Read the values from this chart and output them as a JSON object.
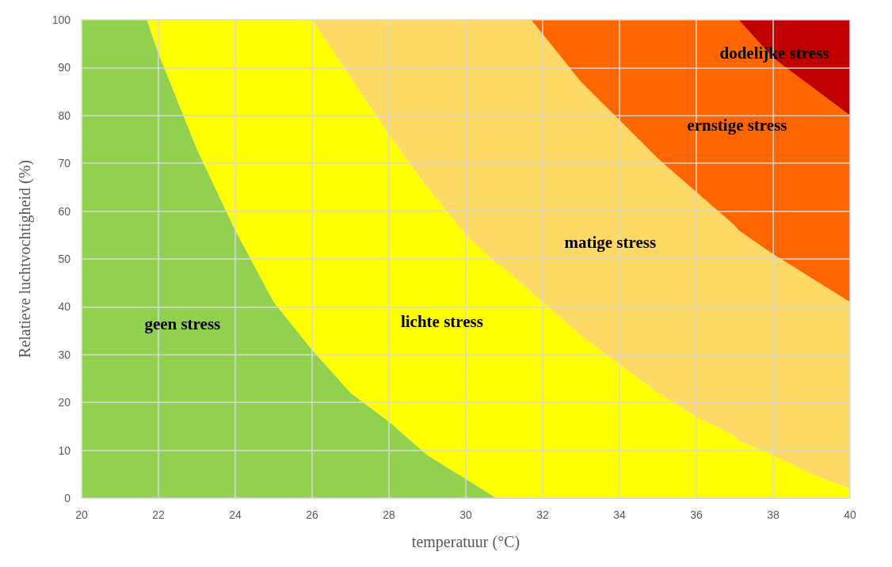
{
  "chart_data": {
    "type": "area",
    "stacked": true,
    "xlabel": "temperatuur (°C)",
    "ylabel": "Relatieve luchtvochtigheid (%)",
    "x": [
      20,
      21,
      21.7,
      22,
      23,
      24,
      25,
      26,
      27,
      28,
      29,
      30,
      30.8,
      31,
      31.7,
      32,
      33,
      34,
      35,
      36,
      37,
      37.1,
      38,
      39,
      40
    ],
    "series": [
      {
        "name": "geen stress",
        "color": "#92d050",
        "values": [
          100,
          100,
          100,
          93,
          73,
          56,
          41,
          31,
          22,
          16,
          9,
          4,
          0,
          null,
          null,
          null,
          null,
          null,
          null,
          null,
          null,
          null,
          null,
          null,
          null
        ]
      },
      {
        "name": "lichte stress",
        "color": "#ffff00",
        "values": [
          null,
          null,
          0,
          7,
          27,
          44,
          59,
          69,
          66,
          60,
          56,
          51,
          49,
          48,
          43,
          41,
          34,
          28,
          22,
          17,
          13,
          12,
          9,
          5,
          2
        ]
      },
      {
        "name": "matige stress",
        "color": "#ffd966",
        "values": [
          null,
          null,
          null,
          null,
          null,
          null,
          null,
          0,
          12,
          24,
          35,
          45,
          51,
          52,
          57,
          56,
          53,
          51,
          49,
          47,
          44,
          44,
          42,
          41,
          39
        ]
      },
      {
        "name": "ernstige stress",
        "color": "#ff6600",
        "values": [
          null,
          null,
          null,
          null,
          null,
          null,
          null,
          null,
          null,
          null,
          null,
          null,
          null,
          null,
          0,
          3,
          13,
          21,
          29,
          36,
          43,
          44,
          41,
          40,
          39
        ]
      },
      {
        "name": "dodelijke stress",
        "color": "#c00000",
        "values": [
          null,
          null,
          null,
          null,
          null,
          null,
          null,
          null,
          null,
          null,
          null,
          null,
          null,
          null,
          null,
          null,
          null,
          null,
          null,
          null,
          null,
          0,
          8,
          14,
          20
        ]
      }
    ],
    "xlim": [
      20,
      40
    ],
    "xticks": [
      20,
      22,
      24,
      26,
      28,
      30,
      32,
      34,
      36,
      38,
      40
    ],
    "ylim": [
      0,
      100
    ],
    "yticks": [
      0,
      10,
      20,
      30,
      40,
      50,
      60,
      70,
      80,
      90,
      100
    ],
    "grid": true,
    "legend": false
  }
}
